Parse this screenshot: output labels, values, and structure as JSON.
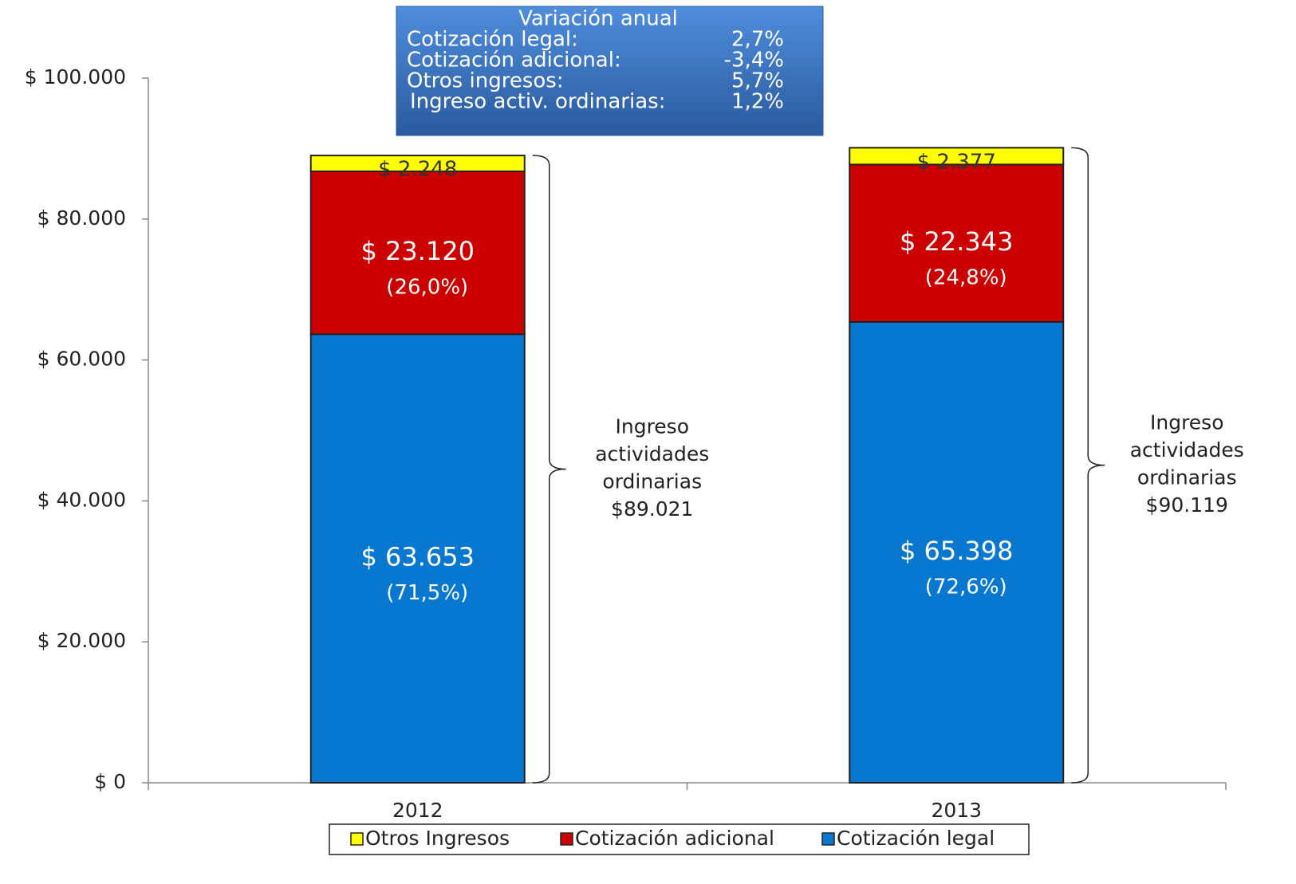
{
  "chart_data": {
    "type": "stacked_bar",
    "categories": [
      "2012",
      "2013"
    ],
    "series": [
      {
        "name": "Cotización legal",
        "color": "#0777d0",
        "values": [
          63653,
          65398
        ],
        "value_labels": [
          "$ 63.653",
          "$ 65.398"
        ],
        "percent_labels": [
          "(71,5%)",
          "(72,6%)"
        ]
      },
      {
        "name": "Cotización adicional",
        "color": "#cc0000",
        "values": [
          23120,
          22343
        ],
        "value_labels": [
          "$ 23.120",
          "$ 22.343"
        ],
        "percent_labels": [
          "(26,0%)",
          "(24,8%)"
        ]
      },
      {
        "name": "Otros Ingresos",
        "color": "#ffff00",
        "values": [
          2248,
          2377
        ],
        "value_labels": [
          "$ 2.248",
          "$ 2.377"
        ]
      }
    ],
    "ylim": [
      0,
      100000
    ],
    "yticks": [
      {
        "value": 0,
        "label": "$ 0"
      },
      {
        "value": 20000,
        "label": "$ 20.000"
      },
      {
        "value": 40000,
        "label": "$ 40.000"
      },
      {
        "value": 60000,
        "label": "$ 60.000"
      },
      {
        "value": 80000,
        "label": "$ 80.000"
      },
      {
        "value": 100000,
        "label": "$ 100.000"
      }
    ],
    "total_labels": [
      [
        "Ingreso",
        "actividades",
        "ordinarias",
        "$89.021"
      ],
      [
        "Ingreso",
        "actividades",
        "ordinarias",
        "$90.119"
      ]
    ],
    "info_box": {
      "title": "Variación anual",
      "rows": [
        [
          "Cotización legal:",
          "2,7%"
        ],
        [
          "Cotización adicional:",
          "-3,4%"
        ],
        [
          "Otros ingresos:",
          "5,7%"
        ],
        [
          "Ingreso activ. ordinarias:",
          "1,2%"
        ]
      ]
    },
    "legend": "bottom"
  }
}
